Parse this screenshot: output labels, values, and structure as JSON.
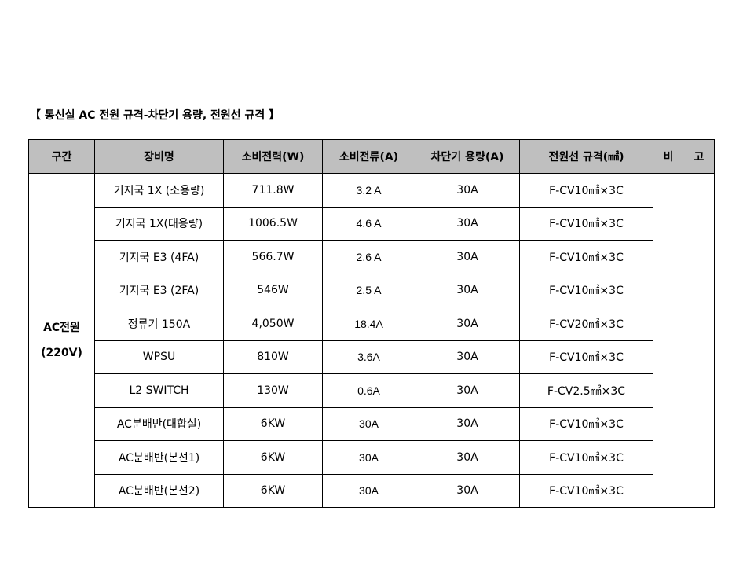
{
  "title": "【 통신실 AC 전원 규격-차단기 용량, 전원선 규격 】",
  "table": {
    "headers": {
      "section": "구간",
      "equipment": "장비명",
      "power": "소비전력(W)",
      "current": "소비전류(A)",
      "breaker": "차단기 용량(A)",
      "cable": "전원선 규격(㎟)",
      "note_1": "비",
      "note_2": "고"
    },
    "section_line1": "AC전원",
    "section_line2": "(220V)",
    "rows": [
      {
        "equipment": "기지국 1X (소용량)",
        "power": "711.8W",
        "current": "3.2 A",
        "breaker": "30A",
        "cable": "F-CV10㎟×3C"
      },
      {
        "equipment": "기지국 1X(대용량)",
        "power": "1006.5W",
        "current": "4.6 A",
        "breaker": "30A",
        "cable": "F-CV10㎟×3C"
      },
      {
        "equipment": "기지국 E3 (4FA)",
        "power": "566.7W",
        "current": "2.6 A",
        "breaker": "30A",
        "cable": "F-CV10㎟×3C"
      },
      {
        "equipment": "기지국 E3 (2FA)",
        "power": "546W",
        "current": "2.5 A",
        "breaker": "30A",
        "cable": "F-CV10㎟×3C"
      },
      {
        "equipment": "정류기 150A",
        "power": "4,050W",
        "current": "18.4A",
        "breaker": "30A",
        "cable": "F-CV20㎟×3C"
      },
      {
        "equipment": "WPSU",
        "power": "810W",
        "current": "3.6A",
        "breaker": "30A",
        "cable": "F-CV10㎟×3C"
      },
      {
        "equipment": "L2 SWITCH",
        "power": "130W",
        "current": "0.6A",
        "breaker": "30A",
        "cable": "F-CV2.5㎟×3C"
      },
      {
        "equipment": "AC분배반(대합실)",
        "power": "6KW",
        "current": "30A",
        "breaker": "30A",
        "cable": "F-CV10㎟×3C"
      },
      {
        "equipment": "AC분배반(본선1)",
        "power": "6KW",
        "current": "30A",
        "breaker": "30A",
        "cable": "F-CV10㎟×3C"
      },
      {
        "equipment": "AC분배반(본선2)",
        "power": "6KW",
        "current": "30A",
        "breaker": "30A",
        "cable": "F-CV10㎟×3C"
      }
    ]
  }
}
